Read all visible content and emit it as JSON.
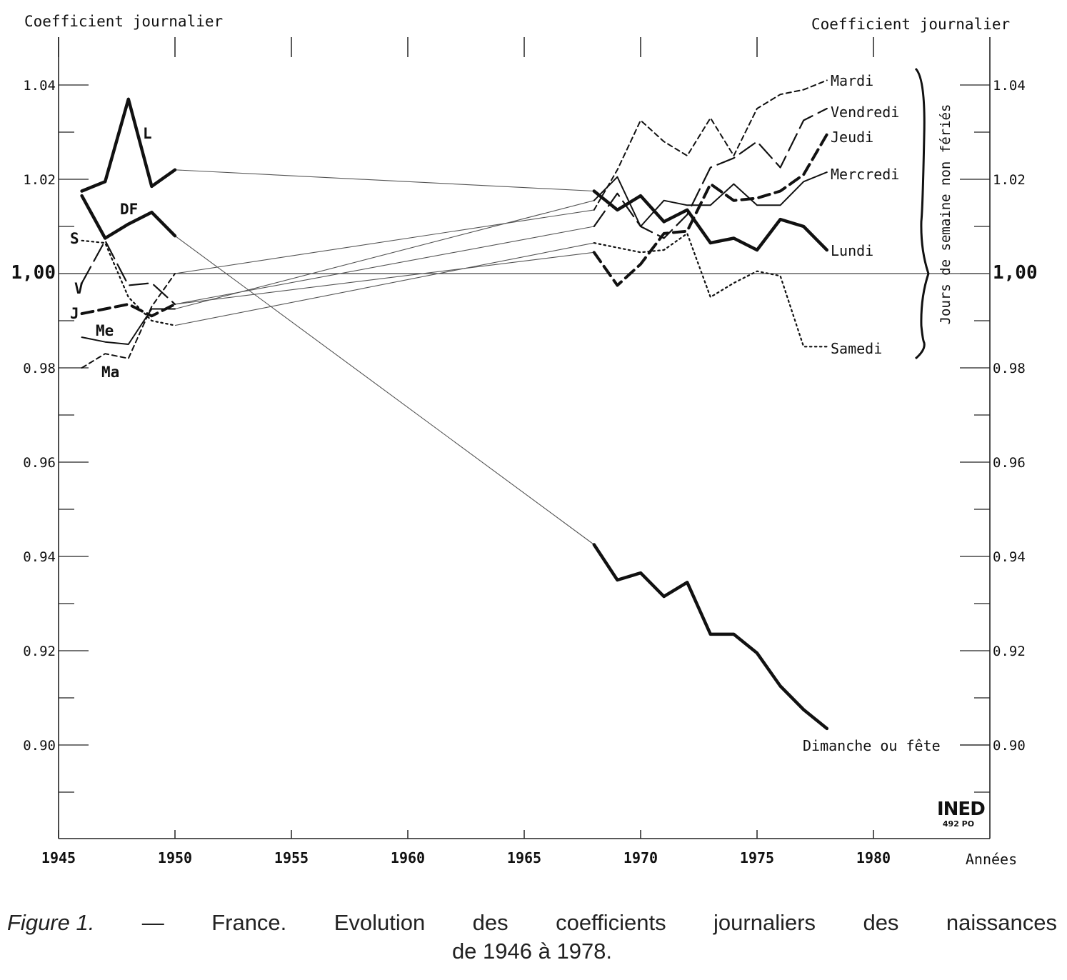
{
  "chart_data": {
    "type": "line",
    "y_title_left": "Coefficient journalier",
    "y_title_right": "Coefficient journalier",
    "xlabel": "Années",
    "xlim": [
      1945,
      1985
    ],
    "ylim": [
      0.88,
      1.05
    ],
    "x_ticks": [
      1945,
      1950,
      1955,
      1960,
      1965,
      1970,
      1975,
      1980
    ],
    "y_ticks_left": [
      "0.90",
      "0.92",
      "0.94",
      "0.96",
      "0.98",
      "1.00",
      "1.02",
      "1.04"
    ],
    "y_ticks_right": [
      "0.90",
      "0.92",
      "0.94",
      "0.96",
      "0.98",
      "1,00",
      "1.02",
      "1.04"
    ],
    "reference_line": 1.0,
    "bracket_label": "Jours de semaine non fériés",
    "series": [
      {
        "name": "Lundi",
        "early_label": "L",
        "style": "thick",
        "x1": [
          1946,
          1947,
          1948,
          1949,
          1950
        ],
        "y1": [
          1.0175,
          1.0195,
          1.037,
          1.0185,
          1.022
        ],
        "x2": [
          1968,
          1969,
          1970,
          1971,
          1972,
          1973,
          1974,
          1975,
          1976,
          1977,
          1978
        ],
        "y2": [
          1.0175,
          1.0135,
          1.0165,
          1.011,
          1.0135,
          1.0065,
          1.0075,
          1.005,
          1.0115,
          1.01,
          1.005
        ]
      },
      {
        "name": "Mardi",
        "early_label": "Ma",
        "style": "short-dash",
        "x1": [
          1946,
          1947,
          1948,
          1949,
          1950
        ],
        "y1": [
          0.98,
          0.983,
          0.982,
          0.993,
          1.0
        ],
        "x2": [
          1968,
          1969,
          1970,
          1971,
          1972,
          1973,
          1974,
          1975,
          1976,
          1977,
          1978
        ],
        "y2": [
          1.0135,
          1.022,
          1.0325,
          1.028,
          1.025,
          1.033,
          1.025,
          1.035,
          1.038,
          1.039,
          1.041
        ]
      },
      {
        "name": "Mercredi",
        "early_label": "Me",
        "style": "solid-thin",
        "x1": [
          1946,
          1947,
          1948,
          1949,
          1950
        ],
        "y1": [
          0.9865,
          0.9855,
          0.985,
          0.9925,
          0.9925
        ],
        "x2": [
          1968,
          1969,
          1970,
          1971,
          1972,
          1973,
          1974,
          1975,
          1976,
          1977,
          1978
        ],
        "y2": [
          1.0155,
          1.0205,
          1.01,
          1.0155,
          1.0145,
          1.0145,
          1.019,
          1.0145,
          1.0145,
          1.0195,
          1.0215
        ]
      },
      {
        "name": "Jeudi",
        "early_label": "J",
        "style": "thick-dash",
        "x1": [
          1946,
          1947,
          1948,
          1949,
          1950
        ],
        "y1": [
          0.9915,
          0.9925,
          0.9935,
          0.991,
          0.9935
        ],
        "x2": [
          1968,
          1969,
          1970,
          1971,
          1972,
          1973,
          1974,
          1975,
          1976,
          1977,
          1978
        ],
        "y2": [
          1.0045,
          0.9975,
          1.002,
          1.0085,
          1.009,
          1.019,
          1.0155,
          1.016,
          1.0175,
          1.021,
          1.0295
        ]
      },
      {
        "name": "Vendredi",
        "early_label": "V",
        "style": "long-dash",
        "x1": [
          1946,
          1947,
          1948,
          1949,
          1950
        ],
        "y1": [
          0.998,
          1.007,
          0.9975,
          0.998,
          0.9935
        ],
        "x2": [
          1968,
          1969,
          1970,
          1971,
          1972,
          1973,
          1974,
          1975,
          1976,
          1977,
          1978
        ],
        "y2": [
          1.01,
          1.017,
          1.01,
          1.0075,
          1.0125,
          1.0225,
          1.0245,
          1.028,
          1.0225,
          1.0325,
          1.035
        ]
      },
      {
        "name": "Samedi",
        "early_label": "S",
        "style": "dotted",
        "x1": [
          1946,
          1947,
          1948,
          1949,
          1950
        ],
        "y1": [
          1.007,
          1.0065,
          0.995,
          0.99,
          0.989
        ],
        "x2": [
          1968,
          1969,
          1970,
          1971,
          1972,
          1973,
          1974,
          1975,
          1976,
          1977,
          1978
        ],
        "y2": [
          1.0065,
          1.0055,
          1.0045,
          1.005,
          1.0085,
          0.995,
          0.998,
          1.0005,
          0.9995,
          0.9845,
          0.9845
        ]
      },
      {
        "name": "Dimanche ou fête",
        "early_label": "DF",
        "style": "thick",
        "x1": [
          1946,
          1947,
          1948,
          1949,
          1950
        ],
        "y1": [
          1.0165,
          1.0075,
          1.0105,
          1.013,
          1.008
        ],
        "x2": [
          1968,
          1969,
          1970,
          1971,
          1972,
          1973,
          1974,
          1975,
          1976,
          1977,
          1978
        ],
        "y2": [
          0.9425,
          0.935,
          0.9365,
          0.9315,
          0.9345,
          0.9235,
          0.9235,
          0.9195,
          0.9125,
          0.9075,
          0.9035
        ]
      }
    ]
  },
  "logo": {
    "mark": "INED",
    "code": "492 PO"
  },
  "caption": {
    "figure_label": "Figure 1.",
    "line1_words": [
      "—",
      "France.",
      "Evolution",
      "des",
      "coefficients",
      "journaliers",
      "des",
      "naissances"
    ],
    "line2": "de 1946 à 1978."
  }
}
